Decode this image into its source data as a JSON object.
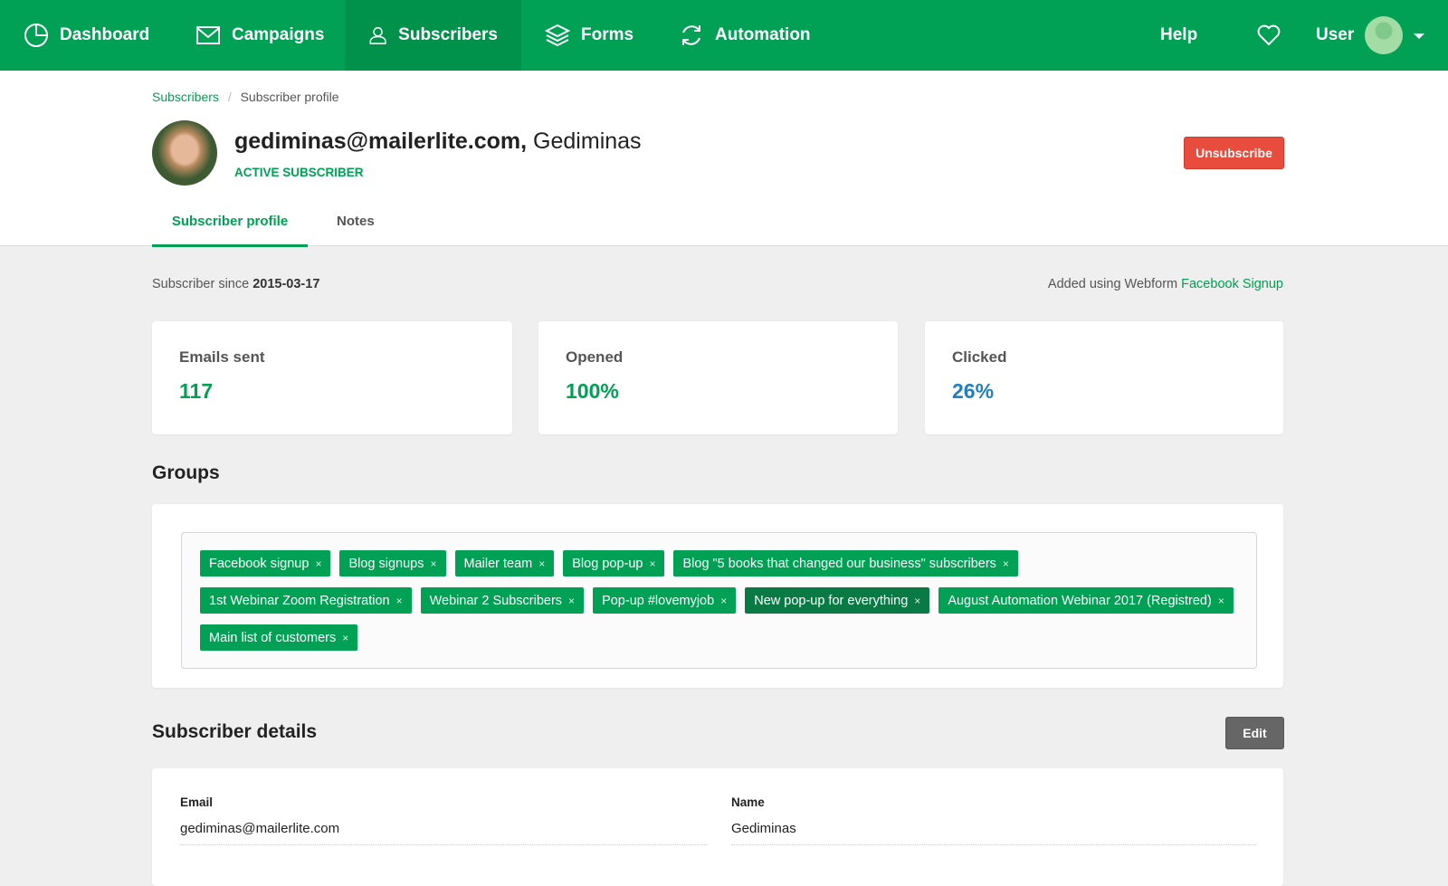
{
  "nav": {
    "items": [
      {
        "label": "Dashboard",
        "icon": "pie-chart-icon"
      },
      {
        "label": "Campaigns",
        "icon": "envelope-icon"
      },
      {
        "label": "Subscribers",
        "icon": "user-icon",
        "active": true
      },
      {
        "label": "Forms",
        "icon": "layers-icon"
      },
      {
        "label": "Automation",
        "icon": "refresh-icon"
      }
    ],
    "help": "Help",
    "user": "User"
  },
  "breadcrumb": {
    "parent": "Subscribers",
    "sep": "/",
    "current": "Subscriber profile"
  },
  "profile": {
    "email": "gediminas@mailerlite.com,",
    "name": " Gediminas",
    "status": "ACTIVE SUBSCRIBER",
    "unsubscribe": "Unsubscribe"
  },
  "tabs": [
    {
      "label": "Subscriber profile",
      "active": true
    },
    {
      "label": "Notes"
    }
  ],
  "meta": {
    "since_label": "Subscriber since ",
    "since": "2015-03-17",
    "added_label": "Added using Webform ",
    "added_form": "Facebook Signup"
  },
  "stats": [
    {
      "label": "Emails sent",
      "value": "117",
      "color": "#00a154"
    },
    {
      "label": "Opened",
      "value": "100%",
      "color": "#00a154"
    },
    {
      "label": "Clicked",
      "value": "26%",
      "color": "#1e7fc1"
    }
  ],
  "groups": {
    "title": "Groups",
    "tags": [
      "Facebook signup",
      "Blog signups",
      "Mailer team",
      "Blog pop-up",
      "Blog \"5 books that changed our business\" subscribers",
      "1st Webinar Zoom Registration",
      "Webinar 2 Subscribers",
      "Pop-up #lovemyjob",
      "New pop-up for everything",
      "August Automation Webinar 2017 (Registred)",
      "Main list of customers"
    ],
    "highlighted": "New pop-up for everything",
    "remove": "×"
  },
  "details": {
    "title": "Subscriber details",
    "edit": "Edit",
    "fields": [
      {
        "label": "Email",
        "value": "gediminas@mailerlite.com"
      },
      {
        "label": "Name",
        "value": "Gediminas"
      }
    ]
  },
  "colors": {
    "brand": "#00a154",
    "danger": "#e74c3c",
    "link_blue": "#1e7fc1"
  }
}
